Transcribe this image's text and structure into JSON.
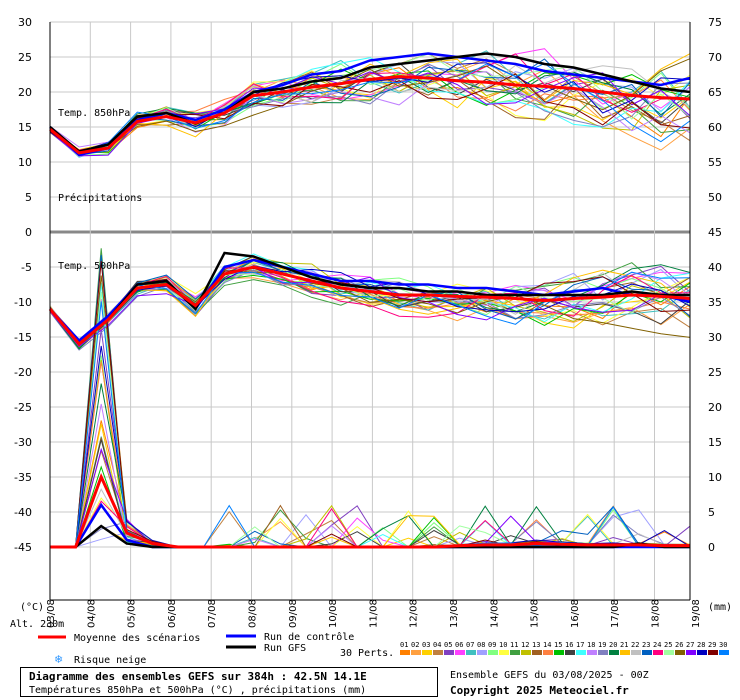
{
  "chart_data": {
    "type": "line",
    "title": "Diagramme des ensembles GEFS sur 384h : 42.5N 14.1E",
    "subtitle": "Températures 850hPa et 500hPa (°C) , précipitations (mm)",
    "x_labels": [
      "04/08",
      "05/08",
      "06/08",
      "07/08",
      "08/08",
      "09/08",
      "10/08",
      "11/08",
      "12/08",
      "13/08",
      "14/08",
      "15/08",
      "16/08",
      "17/08",
      "18/08",
      "19/08"
    ],
    "x_first_label": "03/08",
    "left_axis": {
      "unit": "(°C)",
      "ticks": [
        30,
        25,
        20,
        15,
        10,
        5,
        0,
        -5,
        -10,
        -15,
        -20,
        -25,
        -30,
        -35,
        -40,
        -45
      ]
    },
    "right_axis": {
      "unit": "(mm)",
      "ticks": [
        75,
        70,
        65,
        60,
        55,
        50,
        45,
        40,
        35,
        30,
        25,
        20,
        15,
        10,
        5,
        0
      ]
    },
    "panel_labels": {
      "t850": "Temp. 850hPa",
      "precip": "Précipitations",
      "t500": "Temp. 500hPa"
    },
    "altitude_label": "Alt. 230m",
    "series": [
      {
        "name": "Moyenne des scénarios",
        "key": "mean",
        "color": "#ff0000",
        "t850": [
          14.7,
          11.3,
          12.0,
          15.8,
          16.5,
          15.6,
          17.0,
          19.5,
          20.0,
          20.7,
          21.2,
          21.8,
          22.2,
          22.0,
          21.6,
          21.4,
          21.0,
          20.8,
          20.5,
          20.0,
          19.5,
          19.2,
          19.0
        ],
        "t500": [
          -11.0,
          -16.0,
          -12.5,
          -8.0,
          -7.5,
          -10.5,
          -6.0,
          -5.0,
          -6.0,
          -7.0,
          -8.0,
          -8.5,
          -9.0,
          -9.0,
          -9.2,
          -9.3,
          -9.5,
          -9.8,
          -9.5,
          -9.3,
          -9.0,
          -9.2,
          -9.5
        ],
        "precip": [
          0,
          0,
          10,
          2,
          0.5,
          0,
          0,
          0,
          0,
          0,
          0,
          0,
          0,
          0,
          0,
          0,
          0.2,
          0.3,
          0.3,
          0.5,
          0.4,
          0.3,
          0.3,
          0.3,
          0.2,
          0.2
        ]
      },
      {
        "name": "Run de contrôle",
        "key": "control",
        "color": "#0000ff",
        "t850": [
          15.0,
          11.0,
          12.0,
          16.0,
          17.0,
          16.0,
          17.5,
          20.0,
          21.0,
          22.5,
          23.0,
          24.5,
          25.0,
          25.5,
          25.0,
          24.5,
          24.0,
          23.0,
          22.5,
          22.0,
          21.5,
          21.0,
          22.0
        ],
        "t500": [
          -11.0,
          -15.5,
          -12.0,
          -7.5,
          -7.0,
          -11.0,
          -5.0,
          -4.0,
          -5.0,
          -6.0,
          -7.0,
          -7.0,
          -7.5,
          -7.5,
          -8.0,
          -8.0,
          -8.5,
          -9.0,
          -8.5,
          -8.0,
          -9.0,
          -9.0,
          -10.0
        ],
        "precip": [
          0,
          0,
          6,
          1,
          0,
          0,
          0,
          0,
          0,
          0,
          0,
          0,
          0,
          0,
          0,
          0,
          0,
          0,
          0,
          0,
          0,
          0,
          0,
          0,
          0,
          0
        ]
      },
      {
        "name": "Run GFS",
        "key": "gfs",
        "color": "#000000",
        "t850": [
          15.0,
          11.5,
          12.5,
          16.5,
          17.0,
          15.5,
          17.0,
          20.0,
          20.5,
          21.5,
          22.0,
          23.5,
          24.0,
          24.5,
          25.0,
          25.5,
          25.0,
          24.0,
          23.5,
          22.5,
          21.5,
          20.5,
          20.0
        ],
        "t500": [
          -11.0,
          -16.0,
          -12.5,
          -7.5,
          -7.0,
          -11.0,
          -3.0,
          -3.5,
          -5.0,
          -6.5,
          -7.5,
          -8.0,
          -8.0,
          -8.5,
          -8.5,
          -9.0,
          -9.0,
          -9.0,
          -9.0,
          -9.0,
          -8.5,
          -9.0,
          -9.0
        ],
        "precip": [
          0,
          0,
          3,
          0.5,
          0,
          0,
          0,
          0,
          0,
          0,
          0,
          0,
          0,
          0,
          0,
          0,
          0,
          0,
          0,
          0,
          0,
          0,
          0,
          0.5,
          0,
          0
        ]
      }
    ],
    "legend": {
      "mean_label": "Moyenne des scénarios",
      "control_label": "Run de contrôle",
      "gfs_label": "Run GFS",
      "snow_label": "Risque neige",
      "perts_label": "30 Perts.",
      "member_ids": [
        "01",
        "02",
        "03",
        "04",
        "05",
        "06",
        "07",
        "08",
        "09",
        "10",
        "11",
        "12",
        "13",
        "14",
        "15",
        "16",
        "17",
        "18",
        "19",
        "20",
        "21",
        "22",
        "23",
        "24",
        "25",
        "26",
        "27",
        "28",
        "29",
        "30"
      ],
      "member_colors": [
        "#ff8000",
        "#ffa040",
        "#ffd000",
        "#c08040",
        "#8040c0",
        "#ff40ff",
        "#40c0c0",
        "#a0a0ff",
        "#80ff80",
        "#ffff40",
        "#40a040",
        "#c0c000",
        "#a06020",
        "#ff8040",
        "#00c000",
        "#404040",
        "#40ffff",
        "#c080ff",
        "#8080c0",
        "#008040",
        "#ffc000",
        "#c0c0c0",
        "#0060c0",
        "#ff0080",
        "#a0ffa0",
        "#806000",
        "#8000ff",
        "#0000c0",
        "#800000",
        "#0080ff"
      ]
    }
  },
  "footer": {
    "title": "Diagramme des ensembles GEFS sur 384h : 42.5N 14.1E",
    "subtitle": "Températures 850hPa et 500hPa (°C) , précipitations (mm)",
    "run_info": "Ensemble GEFS du 03/08/2025 - 00Z",
    "copyright": "Copyright 2025 Meteociel.fr"
  }
}
